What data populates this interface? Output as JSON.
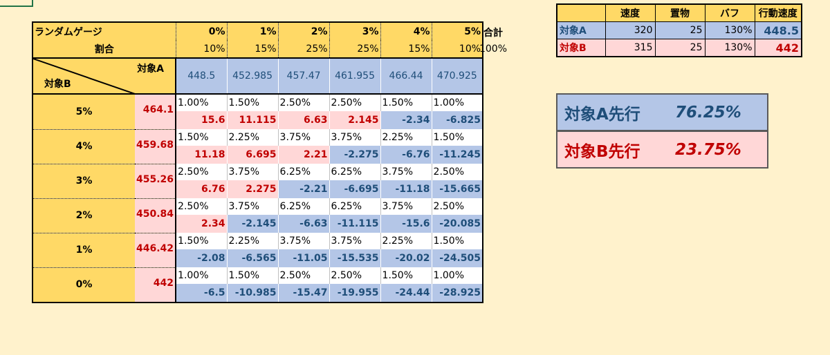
{
  "matrix": {
    "title": "ランダムゲージ",
    "ratio_label": "割合",
    "gauge_cols": [
      "0%",
      "1%",
      "2%",
      "3%",
      "4%",
      "5%"
    ],
    "ratios": [
      "10%",
      "15%",
      "25%",
      "25%",
      "15%",
      "10%"
    ],
    "diag_a": "対象A",
    "diag_b": "対象B",
    "a_speeds": [
      "448.5",
      "452.985",
      "457.47",
      "461.955",
      "466.44",
      "470.925"
    ],
    "rows": [
      {
        "gauge": "5%",
        "b_speed": "464.1",
        "probs": [
          "1.00%",
          "1.50%",
          "2.50%",
          "2.50%",
          "1.50%",
          "1.00%"
        ],
        "diffs": [
          "15.6",
          "11.115",
          "6.63",
          "2.145",
          "-2.34",
          "-6.825"
        ]
      },
      {
        "gauge": "4%",
        "b_speed": "459.68",
        "probs": [
          "1.50%",
          "2.25%",
          "3.75%",
          "3.75%",
          "2.25%",
          "1.50%"
        ],
        "diffs": [
          "11.18",
          "6.695",
          "2.21",
          "-2.275",
          "-6.76",
          "-11.245"
        ]
      },
      {
        "gauge": "3%",
        "b_speed": "455.26",
        "probs": [
          "2.50%",
          "3.75%",
          "6.25%",
          "6.25%",
          "3.75%",
          "2.50%"
        ],
        "diffs": [
          "6.76",
          "2.275",
          "-2.21",
          "-6.695",
          "-11.18",
          "-15.665"
        ]
      },
      {
        "gauge": "2%",
        "b_speed": "450.84",
        "probs": [
          "2.50%",
          "3.75%",
          "6.25%",
          "6.25%",
          "3.75%",
          "2.50%"
        ],
        "diffs": [
          "2.34",
          "-2.145",
          "-6.63",
          "-11.115",
          "-15.6",
          "-20.085"
        ]
      },
      {
        "gauge": "1%",
        "b_speed": "446.42",
        "probs": [
          "1.50%",
          "2.25%",
          "3.75%",
          "3.75%",
          "2.25%",
          "1.50%"
        ],
        "diffs": [
          "-2.08",
          "-6.565",
          "-11.05",
          "-15.535",
          "-20.02",
          "-24.505"
        ]
      },
      {
        "gauge": "0%",
        "b_speed": "442",
        "probs": [
          "1.00%",
          "1.50%",
          "2.50%",
          "2.50%",
          "1.50%",
          "1.00%"
        ],
        "diffs": [
          "-6.5",
          "-10.985",
          "-15.47",
          "-19.955",
          "-24.44",
          "-28.925"
        ]
      }
    ]
  },
  "total": {
    "label": "合計",
    "value": "100%"
  },
  "speed_table": {
    "headers": [
      "",
      "速度",
      "置物",
      "バフ",
      "行動速度"
    ],
    "rows": [
      {
        "name": "対象A",
        "speed": "320",
        "item": "25",
        "buff": "130%",
        "action": "448.5"
      },
      {
        "name": "対象B",
        "speed": "315",
        "item": "25",
        "buff": "130%",
        "action": "442"
      }
    ]
  },
  "results": {
    "a_label": "対象A先行",
    "a_value": "76.25%",
    "b_label": "対象B先行",
    "b_value": "23.75%"
  },
  "colors": {
    "header_yellow": "#ffd966",
    "a_blue": "#b4c6e7",
    "b_pink": "#ffd7d7",
    "a_text": "#1f4e79",
    "b_text": "#c00000",
    "background": "#fff2cc"
  }
}
